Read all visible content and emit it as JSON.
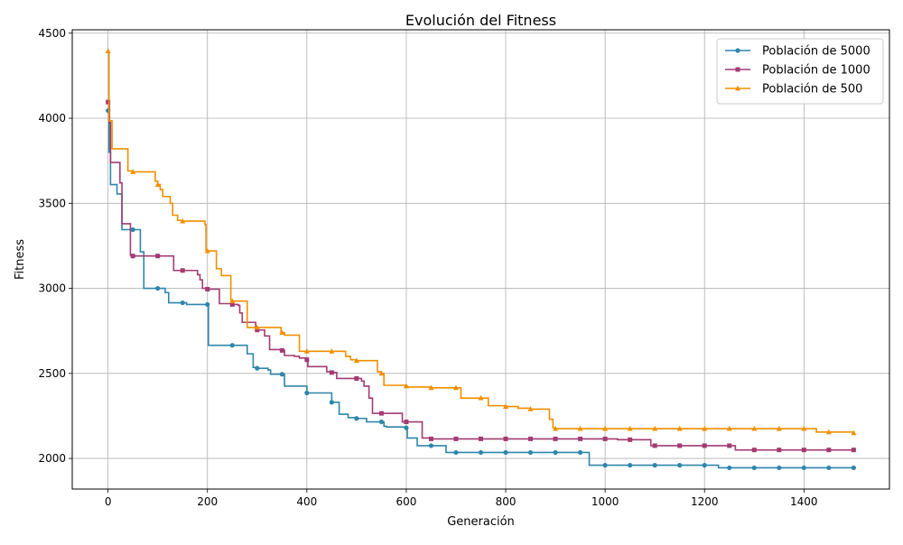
{
  "chart_data": {
    "type": "line",
    "title": "Evolución del Fitness",
    "xlabel": "Generación",
    "ylabel": "Fitness",
    "xlim": [
      -72,
      1572
    ],
    "ylim": [
      1820,
      4520
    ],
    "xticks": [
      0,
      200,
      400,
      600,
      800,
      1000,
      1200,
      1400
    ],
    "yticks": [
      2000,
      2500,
      3000,
      3500,
      4000,
      4500
    ],
    "grid": true,
    "legend_position": "top-right",
    "step": true,
    "marker_every": 50,
    "series": [
      {
        "name": "Población de 5000",
        "color": "#2E86AB",
        "marker": "circle",
        "points": [
          [
            0,
            4045
          ],
          [
            2,
            3800
          ],
          [
            5,
            3610
          ],
          [
            18,
            3555
          ],
          [
            28,
            3345
          ],
          [
            45,
            3345
          ],
          [
            65,
            3215
          ],
          [
            72,
            3000
          ],
          [
            115,
            2975
          ],
          [
            122,
            2915
          ],
          [
            145,
            2915
          ],
          [
            158,
            2905
          ],
          [
            200,
            2905
          ],
          [
            202,
            2665
          ],
          [
            280,
            2615
          ],
          [
            292,
            2535
          ],
          [
            300,
            2530
          ],
          [
            322,
            2520
          ],
          [
            327,
            2495
          ],
          [
            355,
            2425
          ],
          [
            400,
            2385
          ],
          [
            448,
            2385
          ],
          [
            450,
            2330
          ],
          [
            465,
            2260
          ],
          [
            483,
            2240
          ],
          [
            500,
            2235
          ],
          [
            520,
            2215
          ],
          [
            555,
            2190
          ],
          [
            560,
            2185
          ],
          [
            600,
            2180
          ],
          [
            602,
            2120
          ],
          [
            622,
            2075
          ],
          [
            650,
            2075
          ],
          [
            680,
            2035
          ],
          [
            700,
            2035
          ],
          [
            965,
            2035
          ],
          [
            968,
            1960
          ],
          [
            1225,
            1960
          ],
          [
            1228,
            1945
          ],
          [
            1500,
            1945
          ]
        ]
      },
      {
        "name": "Población de 1000",
        "color": "#A23B72",
        "marker": "square",
        "points": [
          [
            0,
            4095
          ],
          [
            3,
            3975
          ],
          [
            5,
            3740
          ],
          [
            22,
            3740
          ],
          [
            24,
            3620
          ],
          [
            28,
            3380
          ],
          [
            40,
            3380
          ],
          [
            45,
            3195
          ],
          [
            50,
            3190
          ],
          [
            130,
            3190
          ],
          [
            132,
            3105
          ],
          [
            150,
            3105
          ],
          [
            180,
            3080
          ],
          [
            185,
            3050
          ],
          [
            190,
            3000
          ],
          [
            200,
            2995
          ],
          [
            222,
            2995
          ],
          [
            224,
            2910
          ],
          [
            250,
            2905
          ],
          [
            262,
            2900
          ],
          [
            265,
            2855
          ],
          [
            270,
            2800
          ],
          [
            295,
            2800
          ],
          [
            297,
            2755
          ],
          [
            315,
            2720
          ],
          [
            325,
            2640
          ],
          [
            350,
            2635
          ],
          [
            355,
            2605
          ],
          [
            375,
            2600
          ],
          [
            385,
            2590
          ],
          [
            395,
            2590
          ],
          [
            400,
            2580
          ],
          [
            402,
            2540
          ],
          [
            440,
            2510
          ],
          [
            450,
            2505
          ],
          [
            458,
            2505
          ],
          [
            460,
            2470
          ],
          [
            500,
            2470
          ],
          [
            510,
            2455
          ],
          [
            515,
            2425
          ],
          [
            525,
            2355
          ],
          [
            532,
            2265
          ],
          [
            550,
            2265
          ],
          [
            590,
            2265
          ],
          [
            592,
            2215
          ],
          [
            630,
            2215
          ],
          [
            632,
            2120
          ],
          [
            650,
            2115
          ],
          [
            1000,
            2115
          ],
          [
            1025,
            2110
          ],
          [
            1050,
            2110
          ],
          [
            1090,
            2110
          ],
          [
            1092,
            2075
          ],
          [
            1100,
            2075
          ],
          [
            1250,
            2075
          ],
          [
            1262,
            2050
          ],
          [
            1300,
            2050
          ],
          [
            1500,
            2050
          ]
        ]
      },
      {
        "name": "Población de 500",
        "color": "#F18F01",
        "marker": "triangle",
        "points": [
          [
            0,
            4395
          ],
          [
            2,
            3985
          ],
          [
            5,
            3985
          ],
          [
            8,
            3820
          ],
          [
            18,
            3820
          ],
          [
            38,
            3820
          ],
          [
            40,
            3690
          ],
          [
            50,
            3685
          ],
          [
            90,
            3685
          ],
          [
            95,
            3630
          ],
          [
            100,
            3610
          ],
          [
            105,
            3580
          ],
          [
            110,
            3540
          ],
          [
            125,
            3500
          ],
          [
            130,
            3430
          ],
          [
            140,
            3400
          ],
          [
            150,
            3395
          ],
          [
            192,
            3395
          ],
          [
            195,
            3375
          ],
          [
            197,
            3225
          ],
          [
            200,
            3220
          ],
          [
            215,
            3220
          ],
          [
            218,
            3115
          ],
          [
            228,
            3075
          ],
          [
            245,
            3075
          ],
          [
            247,
            2930
          ],
          [
            250,
            2925
          ],
          [
            278,
            2925
          ],
          [
            280,
            2770
          ],
          [
            300,
            2770
          ],
          [
            345,
            2770
          ],
          [
            348,
            2740
          ],
          [
            355,
            2725
          ],
          [
            382,
            2725
          ],
          [
            385,
            2630
          ],
          [
            400,
            2630
          ],
          [
            450,
            2630
          ],
          [
            475,
            2630
          ],
          [
            478,
            2600
          ],
          [
            488,
            2580
          ],
          [
            500,
            2575
          ],
          [
            540,
            2575
          ],
          [
            542,
            2510
          ],
          [
            550,
            2500
          ],
          [
            555,
            2430
          ],
          [
            600,
            2425
          ],
          [
            602,
            2420
          ],
          [
            650,
            2415
          ],
          [
            700,
            2415
          ],
          [
            710,
            2355
          ],
          [
            750,
            2355
          ],
          [
            765,
            2310
          ],
          [
            800,
            2305
          ],
          [
            825,
            2295
          ],
          [
            850,
            2290
          ],
          [
            885,
            2290
          ],
          [
            888,
            2230
          ],
          [
            895,
            2180
          ],
          [
            900,
            2175
          ],
          [
            1420,
            2175
          ],
          [
            1425,
            2155
          ],
          [
            1500,
            2150
          ]
        ]
      }
    ]
  }
}
